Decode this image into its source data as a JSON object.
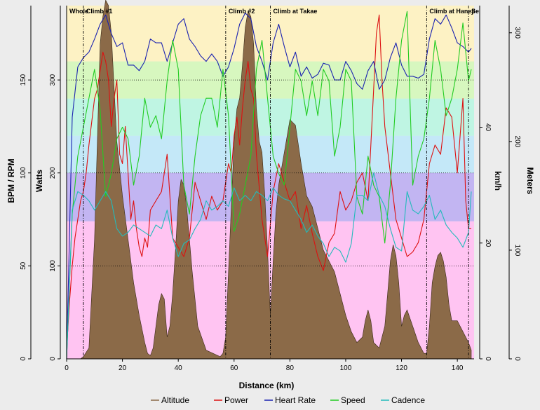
{
  "chart_data": {
    "type": "line",
    "xlabel": "Distance (km)",
    "x_ticks": [
      0,
      20,
      40,
      60,
      80,
      100,
      120,
      140
    ],
    "xlim": [
      0,
      147
    ],
    "axes": {
      "bpm": {
        "label": "BPM / RPM",
        "ticks": [
          0,
          50,
          100,
          150
        ],
        "range": [
          0,
          190
        ]
      },
      "watts": {
        "label": "Watts",
        "ticks": [
          0,
          100,
          200,
          300
        ],
        "range": [
          0,
          380
        ]
      },
      "kmh": {
        "label": "km/h",
        "ticks": [
          0,
          20,
          40
        ],
        "range": [
          0,
          61
        ]
      },
      "meters": {
        "label": "Meters",
        "ticks": [
          0,
          100,
          200,
          300
        ],
        "range": [
          0,
          325
        ]
      }
    },
    "zones": [
      {
        "from": 0,
        "to": 148,
        "color": "#ffc4f2"
      },
      {
        "from": 148,
        "to": 200,
        "color": "#c2b5f2"
      },
      {
        "from": 200,
        "to": 240,
        "color": "#c4e8f8"
      },
      {
        "from": 240,
        "to": 280,
        "color": "#bff5e3"
      },
      {
        "from": 280,
        "to": 320,
        "color": "#d7f7bf"
      },
      {
        "from": 320,
        "to": 380,
        "color": "#fdf2c4"
      }
    ],
    "ref_lines_watts": [
      100,
      200,
      300
    ],
    "markers": [
      {
        "x": 0,
        "label": "Whole"
      },
      {
        "x": 6,
        "label": "Climb #1"
      },
      {
        "x": 57,
        "label": "Climb #2"
      },
      {
        "x": 73,
        "label": "Climb at Takae"
      },
      {
        "x": 129,
        "label": "Climb at Haneji"
      },
      {
        "x": 144,
        "label": "Se"
      }
    ],
    "series": [
      {
        "name": "Altitude",
        "axis": "meters",
        "color": "#8b6a48",
        "filled": true,
        "x": [
          0,
          5,
          6,
          8,
          10,
          12,
          13,
          14,
          15,
          16,
          18,
          20,
          22,
          24,
          26,
          28,
          29,
          30,
          31,
          32,
          33,
          34,
          35,
          36,
          37,
          38,
          39,
          40,
          41,
          42,
          43,
          45,
          47,
          50,
          55,
          56,
          57,
          58,
          59,
          60,
          61,
          62,
          63,
          64,
          65,
          66,
          67,
          68,
          69,
          70,
          71,
          72,
          73,
          74,
          75,
          76,
          78,
          80,
          82,
          84,
          86,
          88,
          90,
          92,
          94,
          96,
          98,
          100,
          102,
          104,
          106,
          107,
          108,
          109,
          110,
          112,
          114,
          115,
          116,
          117,
          118,
          119,
          120,
          121,
          122,
          124,
          126,
          128,
          129,
          130,
          131,
          132,
          133,
          134,
          135,
          136,
          137,
          138,
          140,
          142,
          144,
          145
        ],
        "y": [
          0,
          0,
          2,
          10,
          110,
          290,
          315,
          330,
          325,
          300,
          200,
          150,
          110,
          70,
          40,
          15,
          5,
          3,
          10,
          30,
          50,
          60,
          55,
          20,
          30,
          60,
          100,
          145,
          165,
          160,
          140,
          80,
          30,
          8,
          2,
          5,
          20,
          80,
          140,
          200,
          230,
          240,
          270,
          305,
          320,
          315,
          290,
          230,
          200,
          190,
          150,
          100,
          40,
          90,
          135,
          160,
          190,
          220,
          215,
          180,
          150,
          140,
          120,
          100,
          90,
          80,
          60,
          40,
          25,
          15,
          20,
          35,
          45,
          35,
          15,
          10,
          30,
          60,
          90,
          105,
          95,
          70,
          30,
          40,
          45,
          30,
          15,
          5,
          5,
          30,
          70,
          85,
          95,
          98,
          90,
          75,
          50,
          35,
          35,
          25,
          15,
          8
        ]
      },
      {
        "name": "Power",
        "axis": "watts",
        "color": "#dd1111",
        "filled": false,
        "x": [
          0,
          1,
          2,
          3,
          4,
          5,
          6,
          7,
          8,
          9,
          10,
          11,
          12,
          13,
          14,
          15,
          16,
          17,
          18,
          19,
          20,
          21,
          22,
          23,
          24,
          25,
          26,
          27,
          28,
          29,
          30,
          32,
          34,
          36,
          38,
          40,
          42,
          44,
          46,
          48,
          50,
          52,
          54,
          56,
          57,
          58,
          59,
          60,
          61,
          62,
          63,
          64,
          65,
          66,
          67,
          68,
          70,
          72,
          74,
          76,
          78,
          80,
          82,
          84,
          86,
          88,
          90,
          92,
          94,
          96,
          98,
          100,
          102,
          104,
          106,
          108,
          110,
          111,
          112,
          113,
          114,
          116,
          118,
          120,
          122,
          124,
          126,
          128,
          130,
          132,
          134,
          136,
          138,
          140,
          142,
          143,
          144,
          145
        ],
        "y": [
          10,
          60,
          100,
          130,
          150,
          170,
          180,
          200,
          230,
          255,
          280,
          290,
          310,
          330,
          320,
          300,
          250,
          280,
          300,
          220,
          210,
          250,
          200,
          150,
          170,
          140,
          120,
          110,
          130,
          120,
          160,
          170,
          180,
          220,
          130,
          120,
          110,
          130,
          190,
          170,
          150,
          175,
          160,
          170,
          190,
          210,
          200,
          240,
          260,
          230,
          270,
          300,
          320,
          290,
          280,
          220,
          150,
          110,
          180,
          210,
          190,
          170,
          180,
          140,
          165,
          135,
          110,
          95,
          125,
          135,
          180,
          160,
          170,
          190,
          200,
          170,
          290,
          350,
          370,
          300,
          250,
          200,
          150,
          130,
          110,
          115,
          125,
          150,
          210,
          230,
          220,
          270,
          260,
          200,
          280,
          170,
          140,
          140
        ]
      },
      {
        "name": "Heart Rate",
        "axis": "bpm",
        "color": "#1a22b0",
        "filled": false,
        "x": [
          0,
          2,
          4,
          6,
          8,
          10,
          12,
          14,
          16,
          18,
          20,
          22,
          24,
          26,
          28,
          30,
          32,
          34,
          36,
          38,
          40,
          42,
          44,
          46,
          48,
          50,
          52,
          54,
          56,
          58,
          60,
          62,
          64,
          66,
          68,
          70,
          72,
          74,
          76,
          78,
          80,
          82,
          84,
          86,
          88,
          90,
          92,
          94,
          96,
          98,
          100,
          102,
          104,
          106,
          108,
          110,
          112,
          114,
          116,
          118,
          120,
          122,
          124,
          126,
          128,
          130,
          132,
          134,
          136,
          138,
          140,
          142,
          144,
          145
        ],
        "y": [
          0,
          130,
          157,
          162,
          165,
          172,
          180,
          185,
          175,
          168,
          170,
          158,
          158,
          155,
          160,
          172,
          170,
          170,
          160,
          170,
          180,
          183,
          172,
          168,
          163,
          160,
          164,
          160,
          152,
          157,
          167,
          180,
          186,
          183,
          168,
          160,
          150,
          170,
          180,
          168,
          157,
          165,
          152,
          157,
          151,
          153,
          159,
          158,
          150,
          150,
          160,
          155,
          148,
          145,
          155,
          160,
          145,
          150,
          162,
          170,
          158,
          152,
          152,
          151,
          153,
          172,
          183,
          180,
          185,
          178,
          170,
          168,
          165,
          167
        ]
      },
      {
        "name": "Speed",
        "axis": "kmh",
        "color": "#22cc22",
        "filled": false,
        "x": [
          0,
          2,
          4,
          6,
          8,
          10,
          12,
          14,
          16,
          18,
          20,
          22,
          24,
          26,
          28,
          30,
          32,
          34,
          36,
          38,
          40,
          42,
          44,
          46,
          48,
          50,
          52,
          54,
          56,
          58,
          60,
          62,
          64,
          66,
          68,
          70,
          72,
          74,
          76,
          78,
          80,
          82,
          84,
          86,
          88,
          90,
          92,
          94,
          96,
          98,
          100,
          102,
          104,
          106,
          108,
          110,
          112,
          114,
          116,
          118,
          120,
          122,
          124,
          126,
          128,
          130,
          132,
          134,
          136,
          138,
          140,
          142,
          144,
          145
        ],
        "y": [
          0,
          25,
          35,
          40,
          45,
          50,
          43,
          28,
          32,
          38,
          40,
          38,
          30,
          35,
          45,
          40,
          42,
          38,
          48,
          55,
          50,
          30,
          25,
          35,
          42,
          45,
          45,
          40,
          50,
          42,
          22,
          25,
          30,
          35,
          50,
          55,
          45,
          35,
          32,
          30,
          40,
          50,
          48,
          42,
          48,
          42,
          50,
          48,
          35,
          40,
          50,
          48,
          28,
          25,
          35,
          30,
          28,
          20,
          30,
          45,
          55,
          60,
          30,
          35,
          38,
          45,
          55,
          50,
          42,
          45,
          50,
          58,
          48,
          50
        ]
      },
      {
        "name": "Cadence",
        "axis": "bpm",
        "color": "#22bbbb",
        "filled": false,
        "x": [
          0,
          2,
          4,
          6,
          8,
          10,
          12,
          14,
          16,
          18,
          20,
          22,
          24,
          26,
          28,
          30,
          32,
          34,
          36,
          38,
          40,
          42,
          44,
          46,
          48,
          50,
          52,
          54,
          56,
          58,
          60,
          62,
          64,
          66,
          68,
          70,
          72,
          74,
          76,
          78,
          80,
          82,
          84,
          86,
          88,
          90,
          92,
          94,
          96,
          98,
          100,
          102,
          104,
          106,
          108,
          110,
          112,
          114,
          116,
          118,
          120,
          122,
          124,
          126,
          128,
          130,
          132,
          134,
          136,
          138,
          140,
          142,
          144,
          145
        ],
        "y": [
          0,
          80,
          90,
          88,
          85,
          80,
          85,
          90,
          85,
          70,
          66,
          68,
          72,
          70,
          68,
          66,
          72,
          70,
          80,
          65,
          55,
          62,
          64,
          70,
          75,
          85,
          80,
          82,
          85,
          82,
          92,
          85,
          88,
          85,
          90,
          88,
          85,
          92,
          88,
          86,
          85,
          80,
          75,
          68,
          72,
          66,
          62,
          55,
          60,
          58,
          52,
          62,
          88,
          88,
          85,
          100,
          88,
          82,
          70,
          60,
          58,
          90,
          80,
          78,
          82,
          88,
          75,
          80,
          72,
          68,
          65,
          60,
          68,
          90
        ]
      }
    ]
  }
}
